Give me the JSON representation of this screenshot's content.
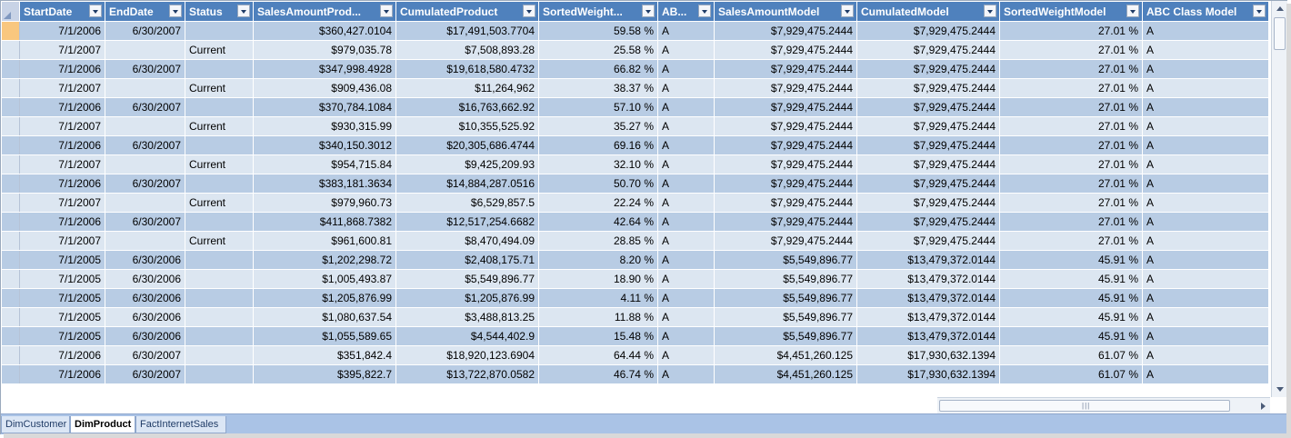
{
  "columns": [
    {
      "label": "StartDate",
      "align": "txt"
    },
    {
      "label": "EndDate",
      "align": "txt"
    },
    {
      "label": "Status",
      "align": "txt"
    },
    {
      "label": "SalesAmountProd...",
      "align": "txt"
    },
    {
      "label": "CumulatedProduct",
      "align": "txt"
    },
    {
      "label": "SortedWeight...",
      "align": "txt"
    },
    {
      "label": "AB...",
      "align": "txt"
    },
    {
      "label": "SalesAmountModel",
      "align": "txt"
    },
    {
      "label": "CumulatedModel",
      "align": "txt"
    },
    {
      "label": "SortedWeightModel",
      "align": "txt"
    },
    {
      "label": "ABC Class Model",
      "align": "txt"
    }
  ],
  "cell_align": [
    "num",
    "num",
    "txt",
    "num",
    "num",
    "num",
    "txt",
    "num",
    "num",
    "num",
    "txt"
  ],
  "rows": [
    [
      "7/1/2006",
      "6/30/2007",
      "",
      "$360,427.0104",
      "$17,491,503.7704",
      "59.58 %",
      "A",
      "$7,929,475.2444",
      "$7,929,475.2444",
      "27.01 %",
      "A"
    ],
    [
      "7/1/2007",
      "",
      "Current",
      "$979,035.78",
      "$7,508,893.28",
      "25.58 %",
      "A",
      "$7,929,475.2444",
      "$7,929,475.2444",
      "27.01 %",
      "A"
    ],
    [
      "7/1/2006",
      "6/30/2007",
      "",
      "$347,998.4928",
      "$19,618,580.4732",
      "66.82 %",
      "A",
      "$7,929,475.2444",
      "$7,929,475.2444",
      "27.01 %",
      "A"
    ],
    [
      "7/1/2007",
      "",
      "Current",
      "$909,436.08",
      "$11,264,962",
      "38.37 %",
      "A",
      "$7,929,475.2444",
      "$7,929,475.2444",
      "27.01 %",
      "A"
    ],
    [
      "7/1/2006",
      "6/30/2007",
      "",
      "$370,784.1084",
      "$16,763,662.92",
      "57.10 %",
      "A",
      "$7,929,475.2444",
      "$7,929,475.2444",
      "27.01 %",
      "A"
    ],
    [
      "7/1/2007",
      "",
      "Current",
      "$930,315.99",
      "$10,355,525.92",
      "35.27 %",
      "A",
      "$7,929,475.2444",
      "$7,929,475.2444",
      "27.01 %",
      "A"
    ],
    [
      "7/1/2006",
      "6/30/2007",
      "",
      "$340,150.3012",
      "$20,305,686.4744",
      "69.16 %",
      "A",
      "$7,929,475.2444",
      "$7,929,475.2444",
      "27.01 %",
      "A"
    ],
    [
      "7/1/2007",
      "",
      "Current",
      "$954,715.84",
      "$9,425,209.93",
      "32.10 %",
      "A",
      "$7,929,475.2444",
      "$7,929,475.2444",
      "27.01 %",
      "A"
    ],
    [
      "7/1/2006",
      "6/30/2007",
      "",
      "$383,181.3634",
      "$14,884,287.0516",
      "50.70 %",
      "A",
      "$7,929,475.2444",
      "$7,929,475.2444",
      "27.01 %",
      "A"
    ],
    [
      "7/1/2007",
      "",
      "Current",
      "$979,960.73",
      "$6,529,857.5",
      "22.24 %",
      "A",
      "$7,929,475.2444",
      "$7,929,475.2444",
      "27.01 %",
      "A"
    ],
    [
      "7/1/2006",
      "6/30/2007",
      "",
      "$411,868.7382",
      "$12,517,254.6682",
      "42.64 %",
      "A",
      "$7,929,475.2444",
      "$7,929,475.2444",
      "27.01 %",
      "A"
    ],
    [
      "7/1/2007",
      "",
      "Current",
      "$961,600.81",
      "$8,470,494.09",
      "28.85 %",
      "A",
      "$7,929,475.2444",
      "$7,929,475.2444",
      "27.01 %",
      "A"
    ],
    [
      "7/1/2005",
      "6/30/2006",
      "",
      "$1,202,298.72",
      "$2,408,175.71",
      "8.20 %",
      "A",
      "$5,549,896.77",
      "$13,479,372.0144",
      "45.91 %",
      "A"
    ],
    [
      "7/1/2005",
      "6/30/2006",
      "",
      "$1,005,493.87",
      "$5,549,896.77",
      "18.90 %",
      "A",
      "$5,549,896.77",
      "$13,479,372.0144",
      "45.91 %",
      "A"
    ],
    [
      "7/1/2005",
      "6/30/2006",
      "",
      "$1,205,876.99",
      "$1,205,876.99",
      "4.11 %",
      "A",
      "$5,549,896.77",
      "$13,479,372.0144",
      "45.91 %",
      "A"
    ],
    [
      "7/1/2005",
      "6/30/2006",
      "",
      "$1,080,637.54",
      "$3,488,813.25",
      "11.88 %",
      "A",
      "$5,549,896.77",
      "$13,479,372.0144",
      "45.91 %",
      "A"
    ],
    [
      "7/1/2005",
      "6/30/2006",
      "",
      "$1,055,589.65",
      "$4,544,402.9",
      "15.48 %",
      "A",
      "$5,549,896.77",
      "$13,479,372.0144",
      "45.91 %",
      "A"
    ],
    [
      "7/1/2006",
      "6/30/2007",
      "",
      "$351,842.4",
      "$18,920,123.6904",
      "64.44 %",
      "A",
      "$4,451,260.125",
      "$17,930,632.1394",
      "61.07 %",
      "A"
    ],
    [
      "7/1/2006",
      "6/30/2007",
      "",
      "$395,822.7",
      "$13,722,870.0582",
      "46.74 %",
      "A",
      "$4,451,260.125",
      "$17,930,632.1394",
      "61.07 %",
      "A"
    ]
  ],
  "tabs": [
    "DimCustomer",
    "DimProduct",
    "FactInternetSales"
  ],
  "active_tab": "DimProduct",
  "colors": {
    "header_bg": "#4f81bd",
    "row_alt": "#b8cce4",
    "row_norm": "#dce6f1",
    "selected_rowhdr": "#f9c77e",
    "tabbar_bg": "#aac3e6"
  }
}
